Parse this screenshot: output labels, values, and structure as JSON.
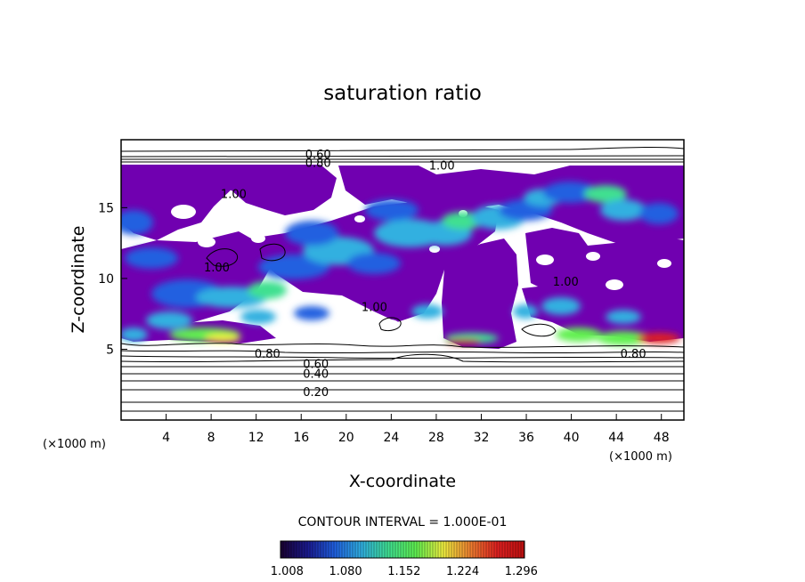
{
  "chart_data": {
    "type": "heatmap",
    "title": "saturation ratio",
    "xlabel": "X-coordinate",
    "ylabel": "Z-coordinate",
    "x_unit": "(×1000 m)",
    "y_unit": "(×1000 m)",
    "xlim": [
      0,
      50
    ],
    "ylim": [
      0,
      19.8
    ],
    "x_ticks": [
      4,
      8,
      12,
      16,
      20,
      24,
      28,
      32,
      36,
      40,
      44,
      48
    ],
    "y_ticks": [
      5,
      10,
      15
    ],
    "grid": false,
    "contour_interval_label": "CONTOUR INTERVAL = 1.000E-01",
    "contour_labels": [
      {
        "text": "0.60",
        "x": 17.5,
        "z": 18.8
      },
      {
        "text": "0.80",
        "x": 17.5,
        "z": 18.2
      },
      {
        "text": "1.00",
        "x": 28.5,
        "z": 18.0
      },
      {
        "text": "1.00",
        "x": 10.0,
        "z": 16.0
      },
      {
        "text": "1.00",
        "x": 8.5,
        "z": 10.8
      },
      {
        "text": "1.00",
        "x": 22.5,
        "z": 8.0
      },
      {
        "text": "1.00",
        "x": 39.5,
        "z": 9.8
      },
      {
        "text": "0.80",
        "x": 13.0,
        "z": 4.7
      },
      {
        "text": "0.60",
        "x": 17.3,
        "z": 4.0
      },
      {
        "text": "0.40",
        "x": 17.3,
        "z": 3.3
      },
      {
        "text": "0.20",
        "x": 17.3,
        "z": 2.0
      },
      {
        "text": "0.80",
        "x": 45.5,
        "z": 4.7
      }
    ],
    "colorbar": {
      "ticks": [
        "1.008",
        "1.080",
        "1.152",
        "1.224",
        "1.296"
      ],
      "range": [
        1.0,
        1.3
      ],
      "colors": [
        "#1a0030",
        "#1a1a90",
        "#2060e0",
        "#30b0e0",
        "#40e090",
        "#60f050",
        "#f0f040",
        "#f08030",
        "#e02020",
        "#c01010"
      ]
    },
    "supersaturated_background_color": "#7000b0"
  }
}
